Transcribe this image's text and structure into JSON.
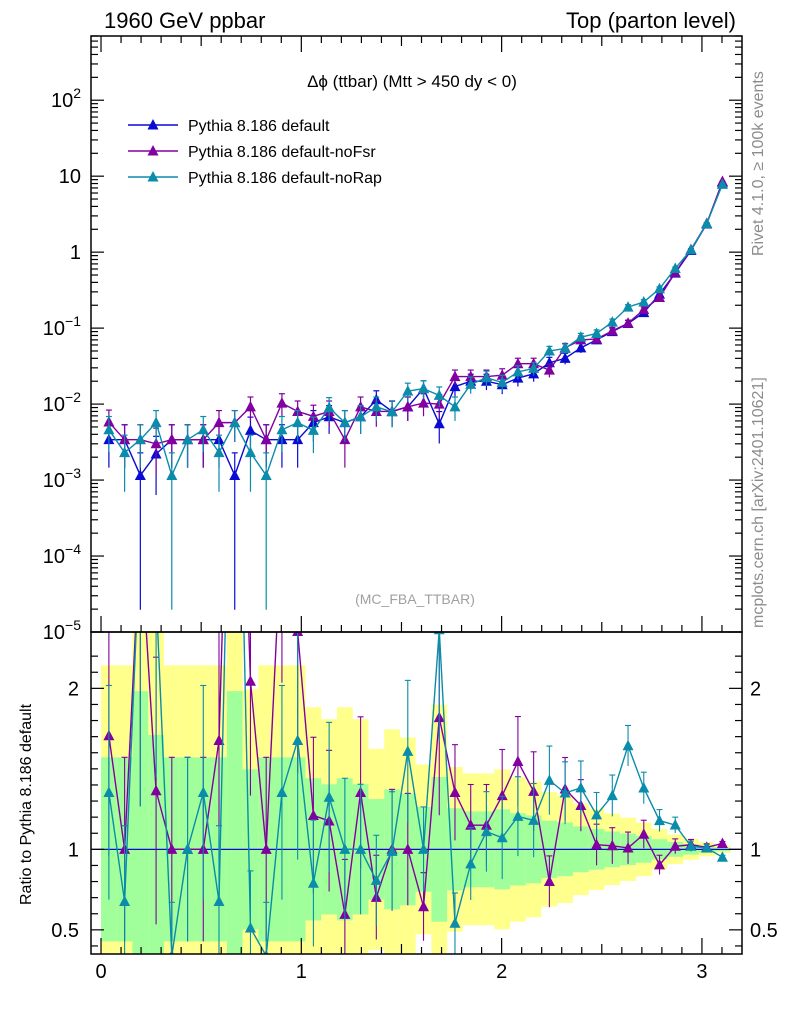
{
  "header": {
    "left": "1960 GeV ppbar",
    "right": "Top (parton level)"
  },
  "side_labels": {
    "rivet": "Rivet 4.1.0, ≥ 100k events",
    "mcplots": "mcplots.cern.ch [arXiv:2401.10621]"
  },
  "chart_data": {
    "type": "line",
    "title": "Δϕ (ttbar) (Mtt > 450 dy < 0)",
    "watermark": "(MC_FBA_TTBAR)",
    "xlabel": "",
    "ylabel": "",
    "ratio_ylabel": "Ratio to Pythia 8.186 default",
    "xlim": [
      -0.05,
      3.2
    ],
    "ylim": [
      1e-05,
      700
    ],
    "yscale": "log",
    "ratio_ylim": [
      0.35,
      2.35
    ],
    "x_tick_labels": [
      "0",
      "1",
      "2",
      "3"
    ],
    "y_tick_labels": [
      "10^-5",
      "10^-4",
      "10^-3",
      "10^-2",
      "10^-1",
      "1",
      "10",
      "10^2"
    ],
    "ratio_tick_labels": [
      "0.5",
      "1",
      "2"
    ],
    "legend_position": "top-left",
    "x": [
      0.0393,
      0.1178,
      0.1963,
      0.2749,
      0.3534,
      0.432,
      0.5105,
      0.589,
      0.6676,
      0.7461,
      0.8247,
      0.9032,
      0.9817,
      1.0603,
      1.1388,
      1.2174,
      1.2959,
      1.3744,
      1.453,
      1.5315,
      1.6101,
      1.6886,
      1.7671,
      1.8457,
      1.9242,
      2.0028,
      2.0813,
      2.1598,
      2.2384,
      2.3169,
      2.3955,
      2.474,
      2.5525,
      2.6311,
      2.7096,
      2.7882,
      2.8667,
      2.9452,
      3.0238,
      3.1023
    ],
    "series": [
      {
        "name": "Pythia 8.186 default",
        "color": "#0a0ad2",
        "values": [
          0.0034,
          0.0034,
          0.00115,
          0.0022,
          0.0034,
          0.0034,
          0.0034,
          0.0034,
          0.00115,
          0.0045,
          0.0034,
          0.0034,
          0.0034,
          0.0057,
          0.0068,
          0.0057,
          0.0068,
          0.0114,
          0.008,
          0.0092,
          0.016,
          0.0055,
          0.017,
          0.02,
          0.02,
          0.018,
          0.022,
          0.025,
          0.035,
          0.04,
          0.055,
          0.07,
          0.09,
          0.115,
          0.16,
          0.28,
          0.53,
          1.05,
          2.35,
          8.2
        ]
      },
      {
        "name": "Pythia 8.186 default-noFsr",
        "color": "#8200a0",
        "values": [
          0.0058,
          0.0034,
          0.0034,
          0.003,
          0.0034,
          0.0034,
          0.0034,
          0.0057,
          0.0057,
          0.0092,
          0.0034,
          0.0103,
          0.008,
          0.0069,
          0.008,
          0.0034,
          0.0092,
          0.008,
          0.008,
          0.0092,
          0.0103,
          0.01,
          0.023,
          0.023,
          0.023,
          0.024,
          0.034,
          0.034,
          0.028,
          0.055,
          0.07,
          0.072,
          0.092,
          0.116,
          0.175,
          0.253,
          0.54,
          1.08,
          2.38,
          8.5
        ]
      },
      {
        "name": "Pythia 8.186 default-noRap",
        "color": "#0a8caa",
        "values": [
          0.0046,
          0.0023,
          0.0034,
          0.0057,
          0.00115,
          0.0034,
          0.0046,
          0.0023,
          0.0057,
          0.0023,
          0.00115,
          0.0046,
          0.0057,
          0.0045,
          0.009,
          0.0057,
          0.0068,
          0.0092,
          0.0079,
          0.0148,
          0.016,
          0.013,
          0.0092,
          0.0182,
          0.0222,
          0.0193,
          0.0265,
          0.0295,
          0.05,
          0.054,
          0.076,
          0.085,
          0.12,
          0.189,
          0.221,
          0.33,
          0.61,
          1.07,
          2.37,
          7.8
        ]
      }
    ]
  }
}
